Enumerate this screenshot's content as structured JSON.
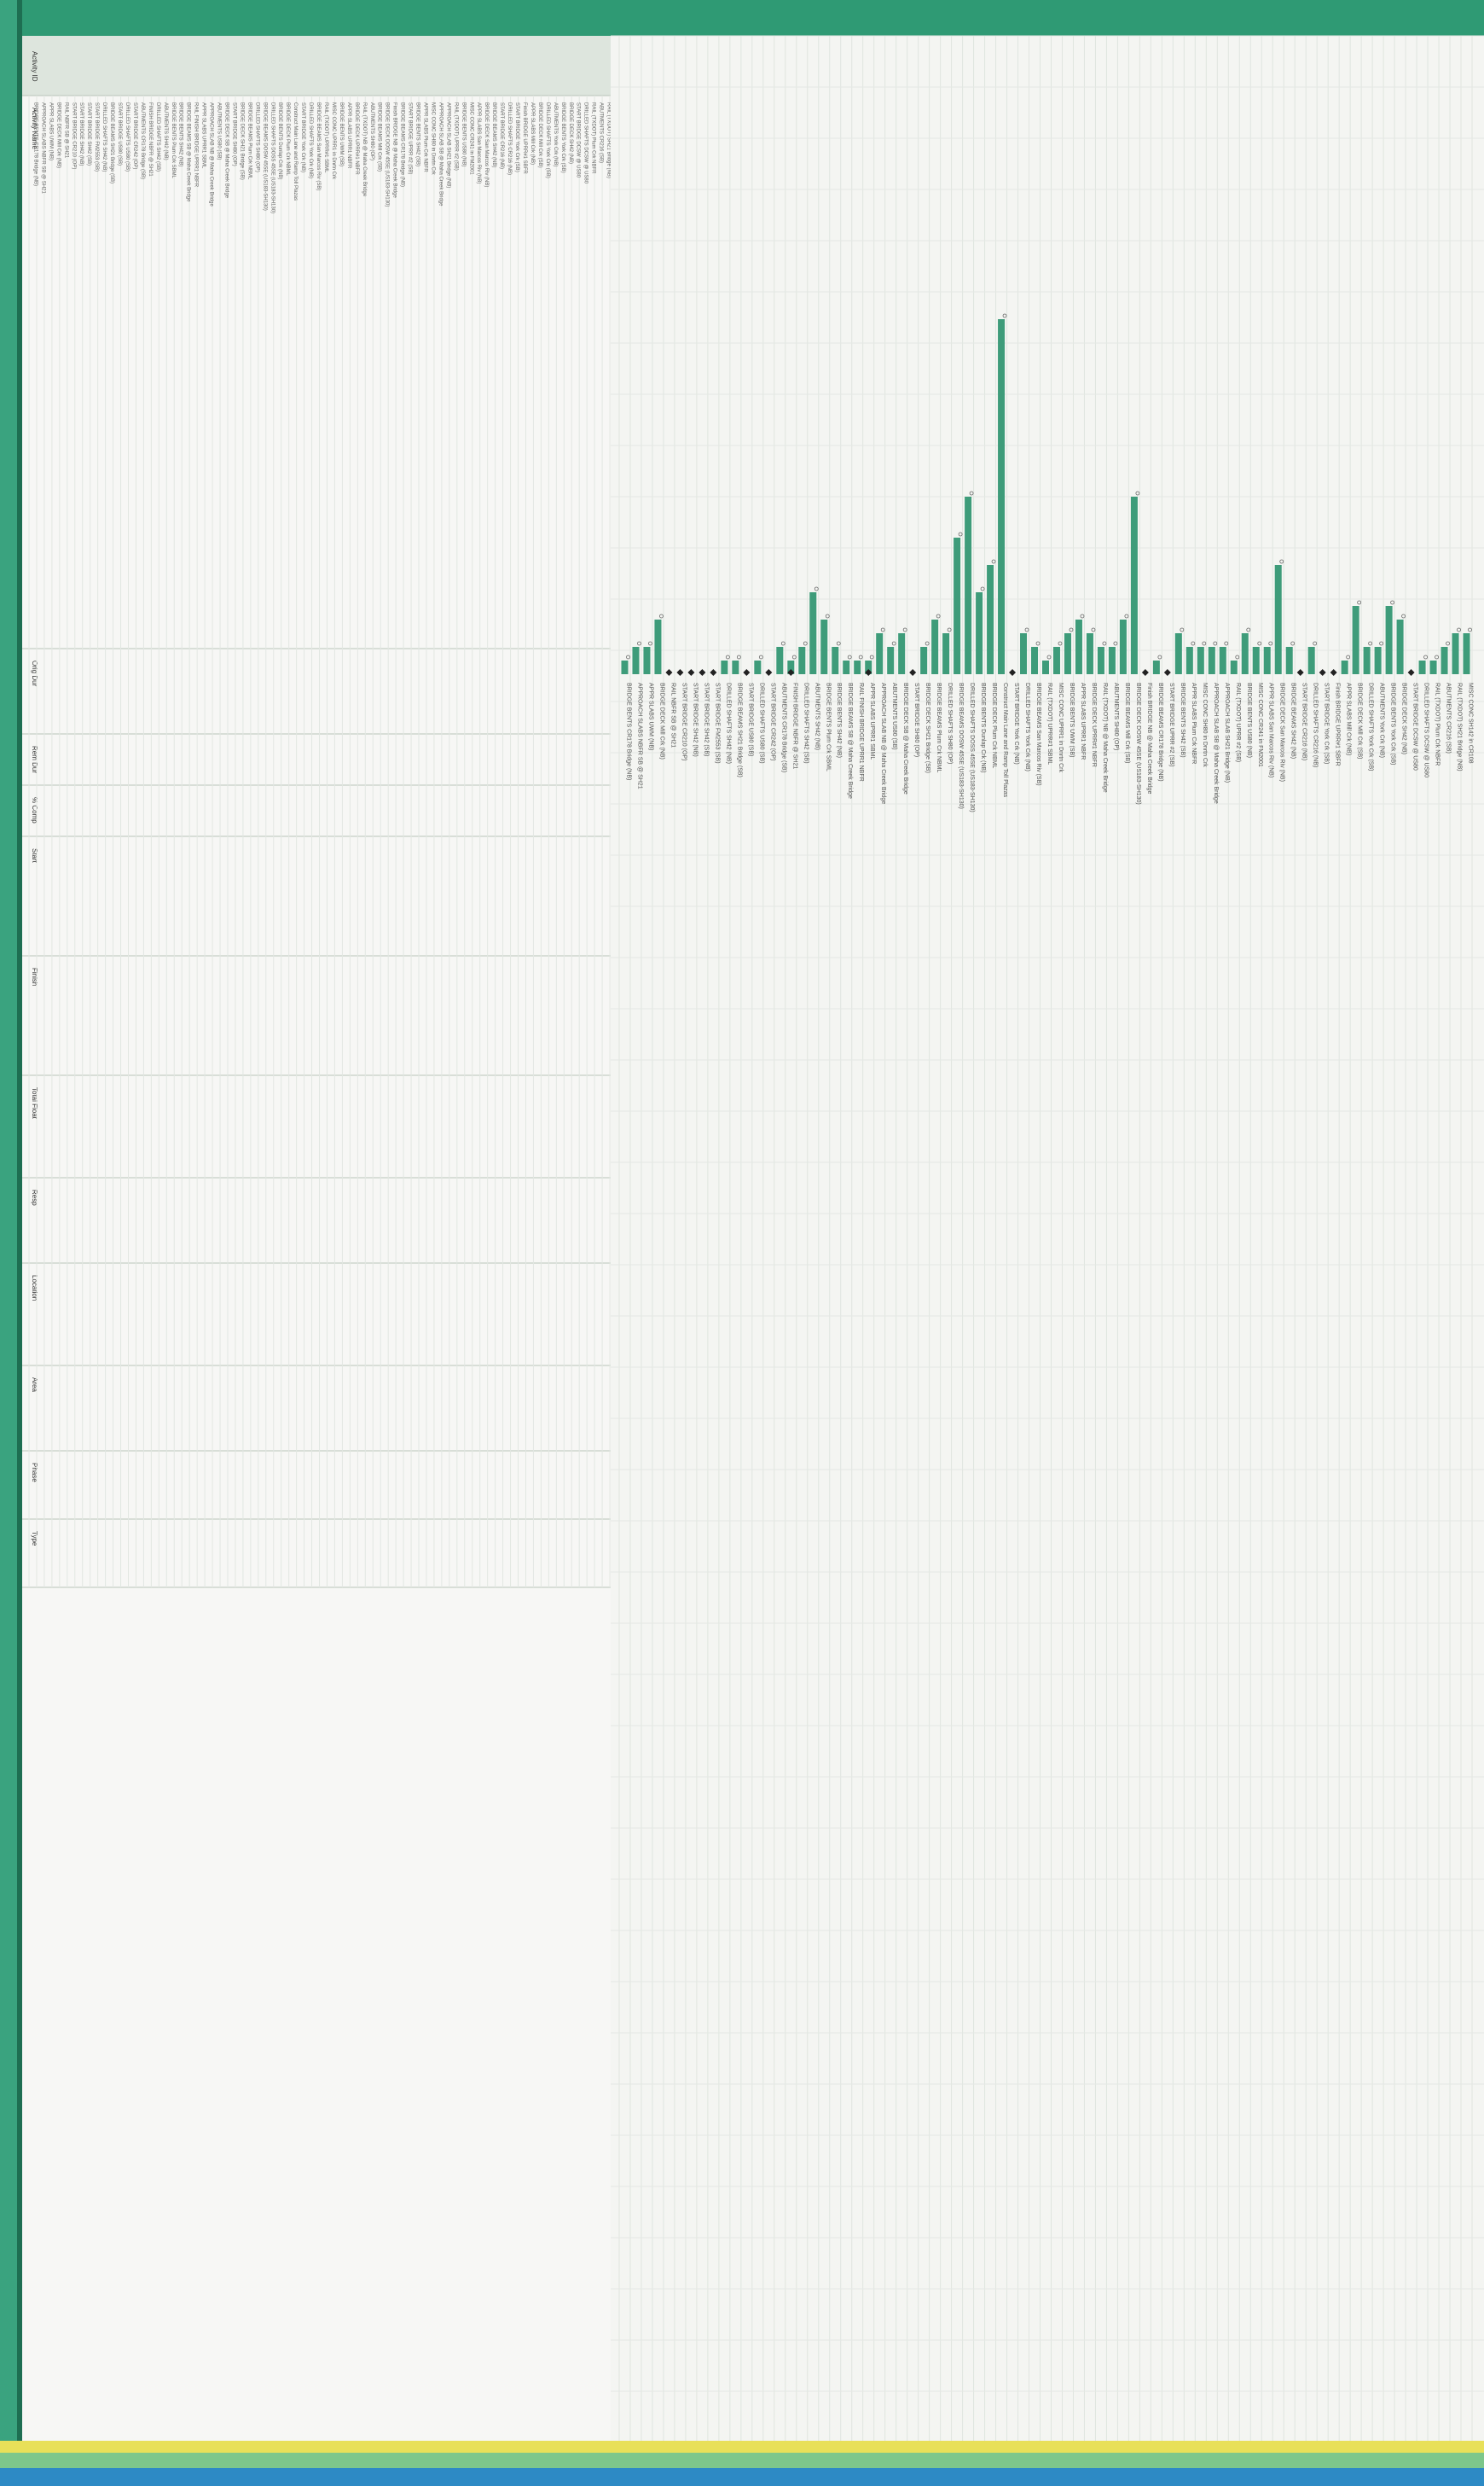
{
  "chart_data": {
    "type": "bar",
    "orientation": "horizontal",
    "title": "",
    "xlabel": "",
    "ylabel": "",
    "legend": "none",
    "grid": true,
    "bar_color": "#3e9c7a",
    "header_color": "#2f9a74",
    "categories": [
      "BRIDGE BENTS CR178 Bridge (NB)",
      "APPROACH SLABS NBFR SB @ SH21",
      "APPR SLABS UWM (NB)",
      "BRIDGE DECK Mill Crk (NB)",
      "RAIL NBFR SB @ SH21",
      "START BRIDGE CR210 (OP)",
      "START BRIDGE SH42 (NB)",
      "START BRIDGE SH42 (SB)",
      "START BRIDGE FM2553 (SB)",
      "DRILLED SHAFTS SH42 (NB)",
      "BRIDGE BEAMS SH21 Bridge (SB)",
      "START BRIDGE US80 (SB)",
      "DRILLED SHAFTS US80 (SB)",
      "START BRIDGE CR242 (OP)",
      "ABUTMENTS CR178 Bridge (SB)",
      "FINISH BRIDGE NBFR @ SH21",
      "DRILLED SHAFTS SH42 (SB)",
      "ABUTMENTS SH42 (NB)",
      "BRIDGE BENTS Plum Crk SBML",
      "BRIDGE BENTS SH42 (NB)",
      "BRIDGE BEAMS SB @ Maha Creek Bridge",
      "RAIL FINISH BRIDGE UPRR1 NBFR",
      "APPR SLABS UPRR1 SBML",
      "APPROACH SLAB NB @ Maha Creek Bridge",
      "ABUTMENTS US80 (SB)",
      "BRIDGE DECK SB @ Maha Creek Bridge",
      "START BRIDGE SH80 (OP)",
      "BRIDGE DECK SH21 Bridge (SB)",
      "BRIDGE BEAMS Plum Crk NBML",
      "DRILLED SHAFTS SH80 (OP)",
      "BRIDGE BEAMS DOSW 45SE (US183-SH130)",
      "DRILLED SHAFTS DOSS 45SE (US183-SH130)",
      "BRIDGE BENTS Dunlap Crk (NB)",
      "BRIDGE DECK Plum Crk NBML",
      "Construct Main Lane and Ramp Toll Plazas",
      "START BRIDGE York Crk (NB)",
      "DRILLED SHAFTS York Crk (NB)",
      "BRIDGE BEAMS San Marcos Riv (SB)",
      "RAIL (TXDOT) UPRR#1 SBML",
      "MISC CONC UPRR1 in Dnrtn Crk",
      "BRIDGE BENTS UWM (SB)",
      "APPR SLABS UPRR1 NBFR",
      "BRIDGE DECK UPRR#1 NBFR",
      "RAIL (TXDOT) NB @ Maha Creek Bridge",
      "ABUTMENTS SH80 (OP)",
      "BRIDGE BEAMS Mill Crk (SB)",
      "BRIDGE DECK DOSW 45SE (US183-SH130)",
      "Finish BRIDGE NB @ Maha Creek Bridge",
      "BRIDGE BEAMS CR178 Bridge (NB)",
      "START BRIDGE UPRR #2 (SB)",
      "BRIDGE BENTS SH42 (SB)",
      "APPR SLABS Plum Crk NBFR",
      "MISC CONC SH80 in Dnrtn Crk",
      "APPROACH SLAB SB @ Maha Creek Bridge",
      "APPROACH SLAB SH21 Bridge (NB)",
      "RAIL (TXDOT) UPRR #2 (SB)",
      "BRIDGE BENTS US80 (NB)",
      "MISC CONC CR241 in FM2001",
      "APPR SLABS San Marcos Riv (NB)",
      "BRIDGE DECK San Marcos Riv (NB)",
      "BRIDGE BEAMS SH42 (NB)",
      "START BRIDGE CR216 (NB)",
      "DRILLED SHAFTS CR216 (NB)",
      "START BRIDGE York Crk (SB)",
      "Finish BRIDGE UPRR#1 SBFR",
      "APPR SLABS Mill Crk (NB)",
      "BRIDGE DECK Mill Crk (SB)",
      "DRILLED SHAFTS York Crk (SB)",
      "ABUTMENTS York Crk (NB)",
      "BRIDGE BENTS York Crk (SB)",
      "BRIDGE DECK SH42 (NB)",
      "START BRIDGE DCSW @ US80",
      "DRILLED SHAFTS DCSW @ US80",
      "RAIL (TXDOT) Plum Crk NBFR",
      "ABUTMENTS CR216 (SB)",
      "RAIL (TXDOT) SH21 Bridge (NB)",
      "MISC CONC SH142 in CR108"
    ],
    "values": [
      1,
      2,
      2,
      4,
      0,
      0,
      0,
      0,
      0,
      1,
      1,
      0,
      1,
      0,
      2,
      1,
      2,
      6,
      4,
      2,
      1,
      1,
      1,
      3,
      2,
      3,
      0,
      2,
      4,
      3,
      10,
      13,
      6,
      8,
      26,
      0,
      3,
      2,
      1,
      2,
      3,
      4,
      3,
      2,
      2,
      4,
      13,
      0,
      1,
      0,
      3,
      2,
      2,
      2,
      2,
      1,
      3,
      2,
      2,
      8,
      2,
      0,
      2,
      0,
      0,
      1,
      5,
      2,
      2,
      5,
      4,
      0,
      1,
      1,
      2,
      3,
      3
    ],
    "milestones": [
      4,
      5,
      6,
      7,
      8,
      11,
      13,
      15,
      22,
      26,
      35,
      47,
      49,
      61,
      63,
      64,
      71
    ],
    "table_columns": [
      "Activity ID",
      "Activity Name",
      "Orig Dur",
      "Rem Dur",
      "% Comp",
      "Start",
      "Finish",
      "Total Float",
      "Resp",
      "Location",
      "Area",
      "Phase",
      "Type"
    ]
  }
}
